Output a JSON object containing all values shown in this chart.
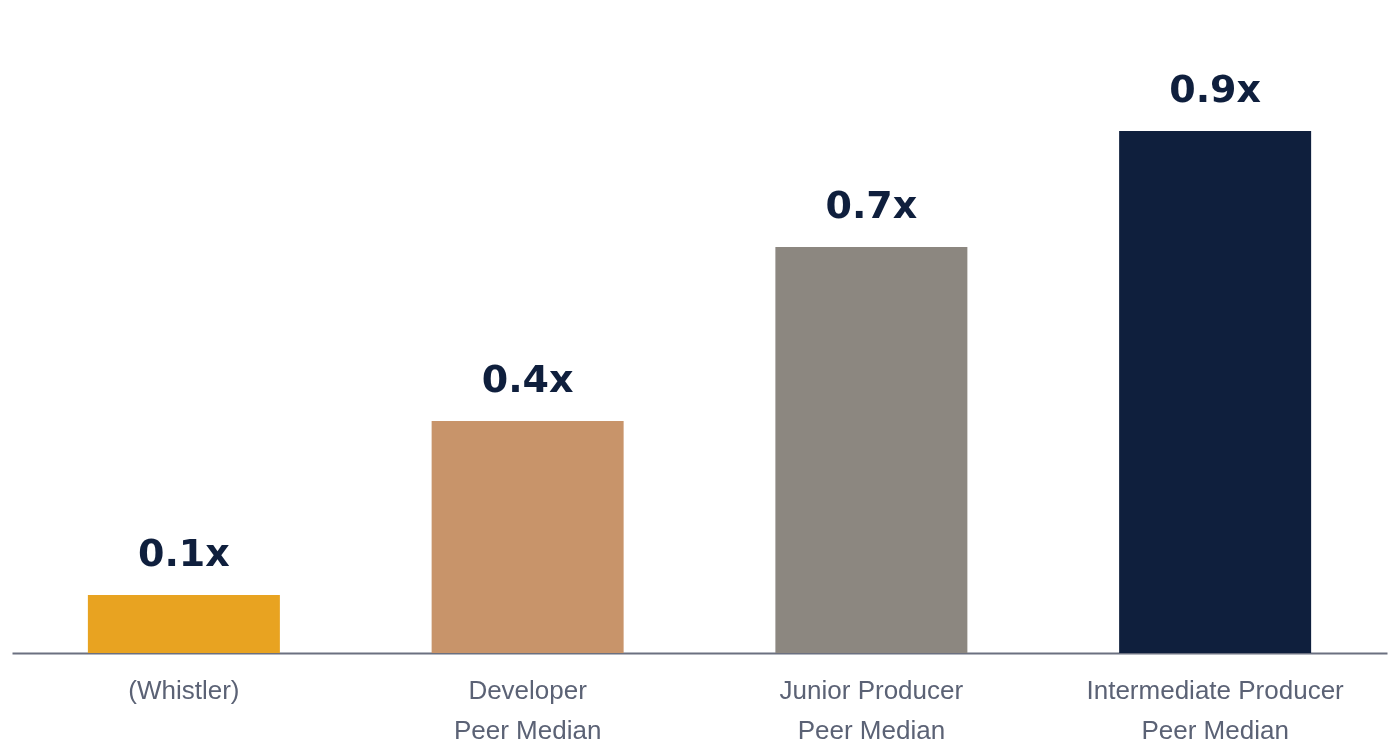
{
  "chart_data": {
    "type": "bar",
    "categories": [
      "(Whistler)",
      "Developer\nPeer Median",
      "Junior Producer\nPeer Median",
      "Intermediate Producer\nPeer Median"
    ],
    "values": [
      0.1,
      0.4,
      0.7,
      0.9
    ],
    "value_labels": [
      "0.1x",
      "0.4x",
      "0.7x",
      "0.9x"
    ],
    "colors": [
      "#e8a321",
      "#c8946a",
      "#8c8780",
      "#0f1f3d"
    ]
  }
}
